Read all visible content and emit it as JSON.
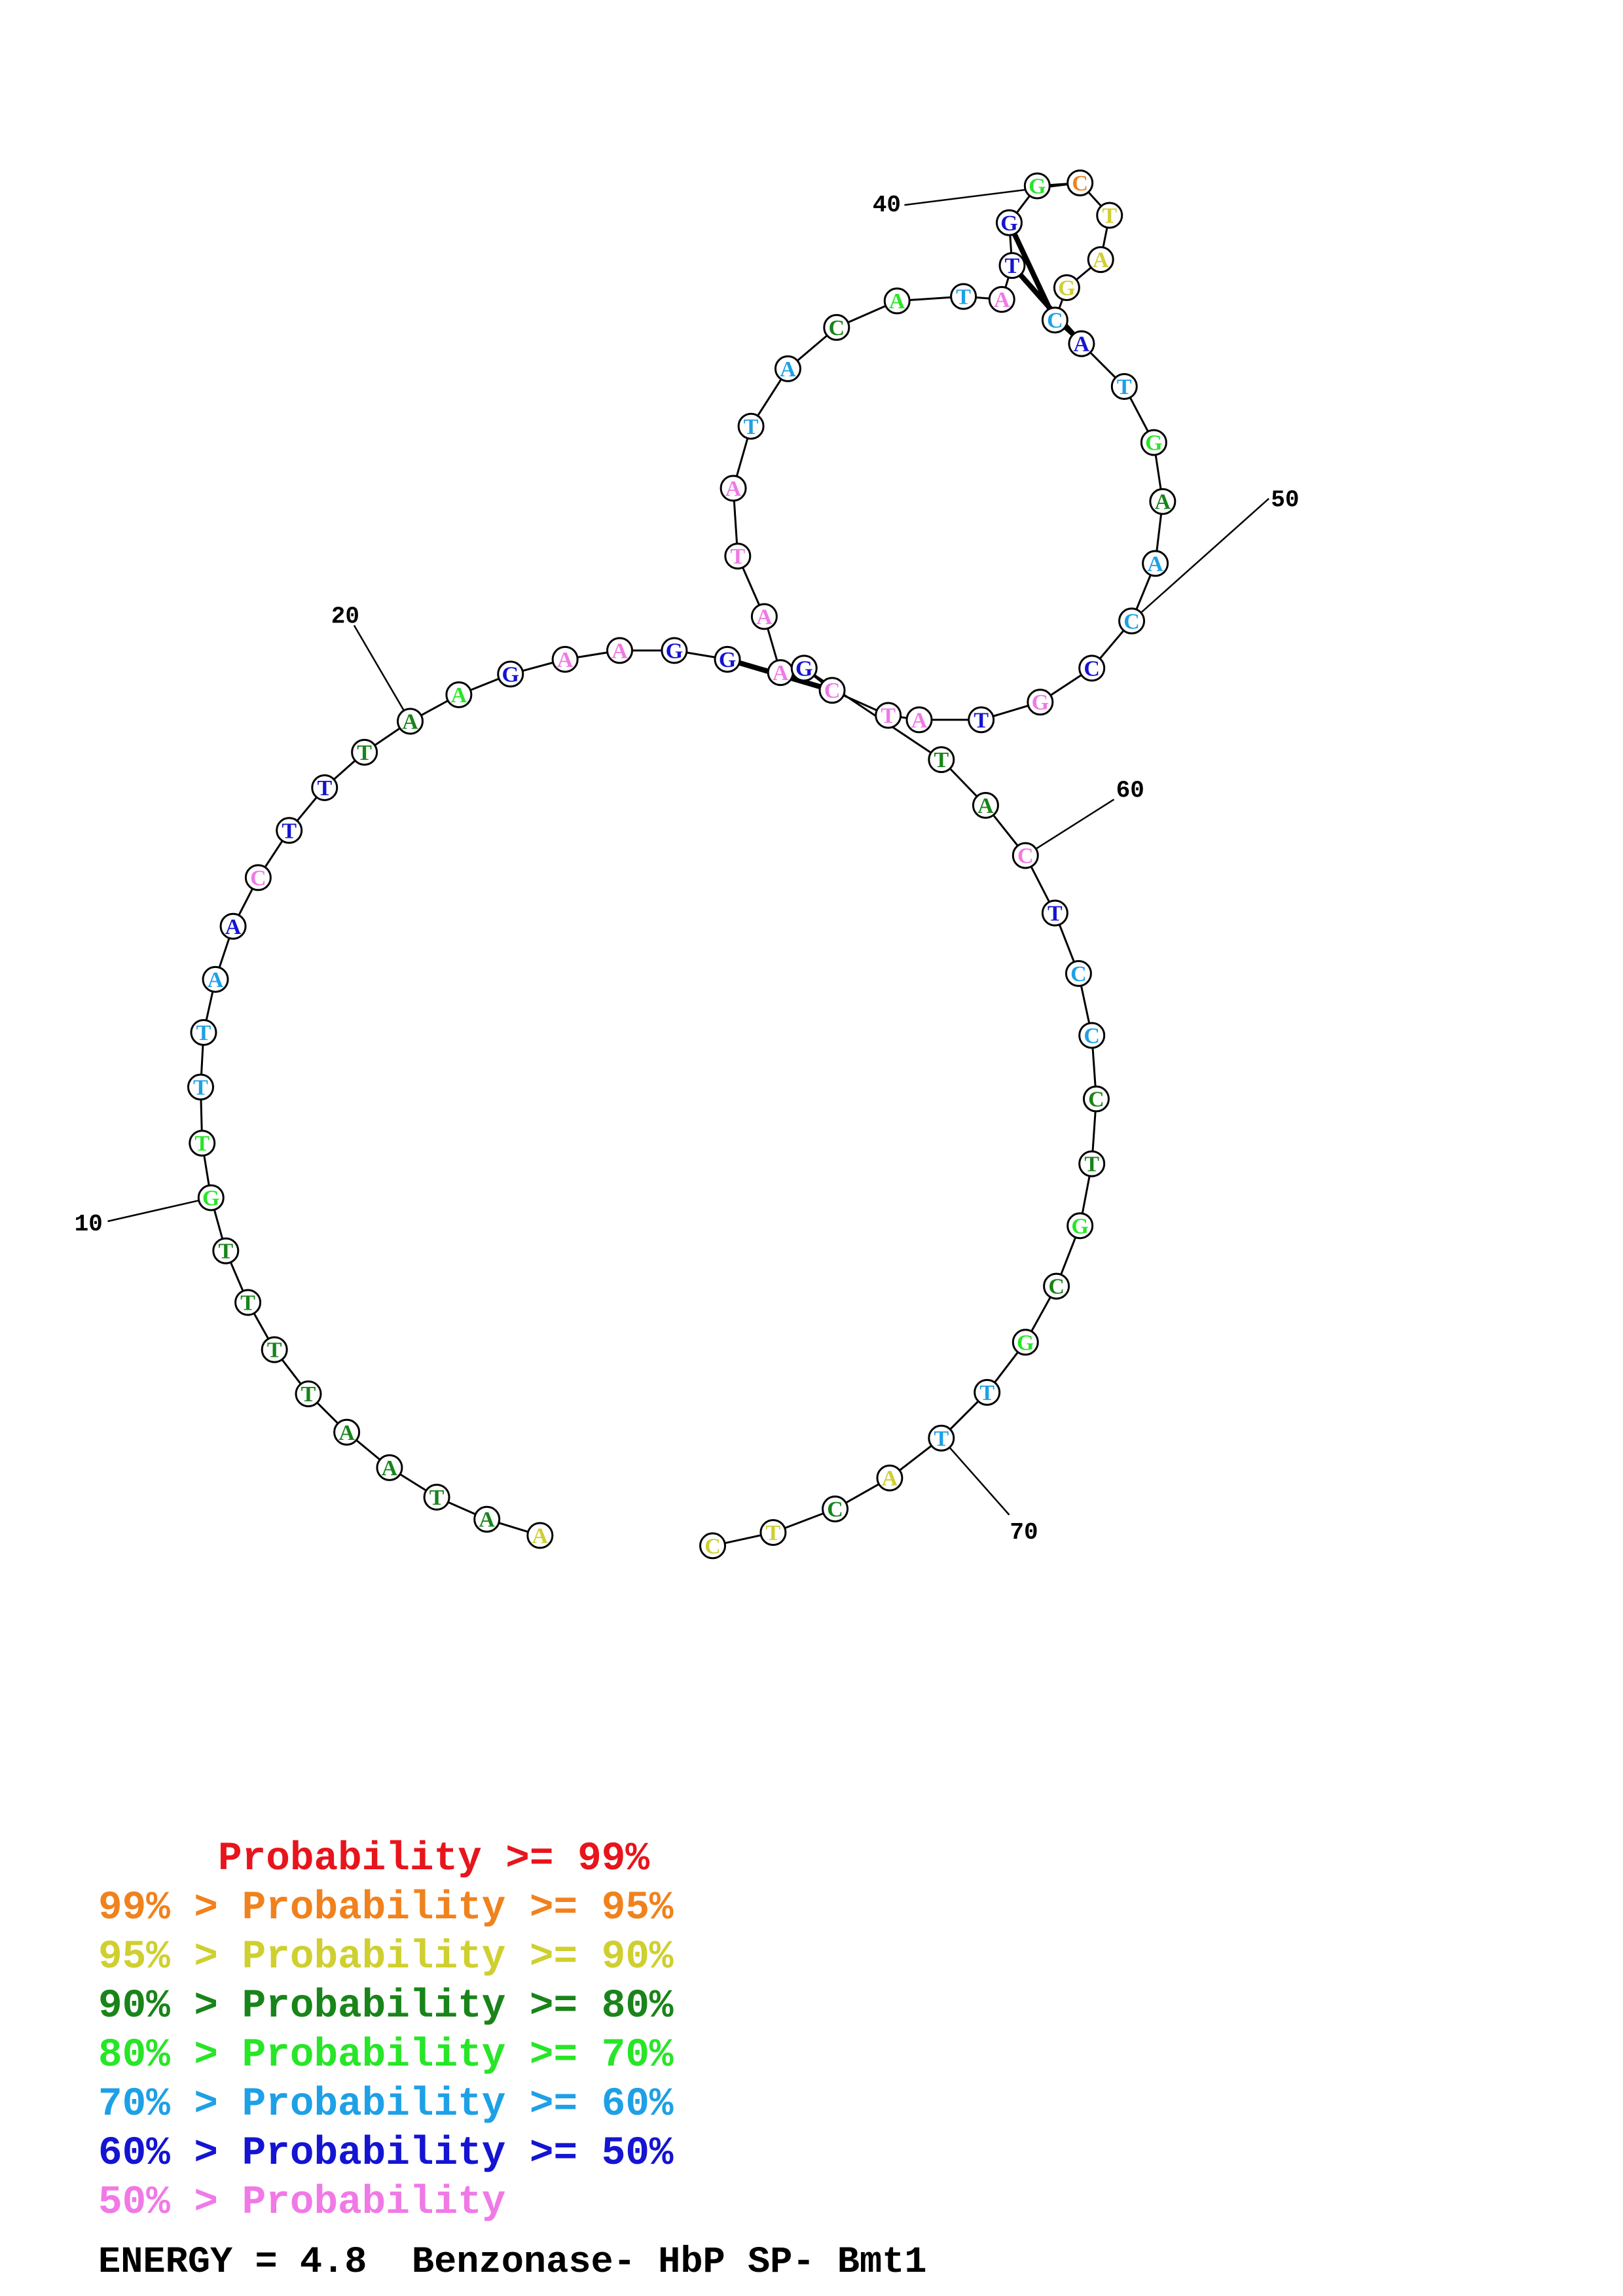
{
  "structure": {
    "sequence": [
      "A",
      "A",
      "T",
      "A",
      "A",
      "T",
      "T",
      "T",
      "T",
      "G",
      "T",
      "T",
      "T",
      "A",
      "A",
      "C",
      "T",
      "T",
      "T",
      "A",
      "A",
      "G",
      "A",
      "A",
      "G",
      "G",
      "A",
      "A",
      "T",
      "A",
      "T",
      "A",
      "C",
      "A",
      "T",
      "A",
      "T",
      "G",
      "G",
      "C",
      "T",
      "A",
      "G",
      "C",
      "A",
      "T",
      "G",
      "A",
      "A",
      "C",
      "C",
      "G",
      "T",
      "A",
      "T",
      "C",
      "G",
      "T",
      "A",
      "C",
      "T",
      "C",
      "C",
      "C",
      "T",
      "G",
      "C",
      "G",
      "T",
      "T",
      "A",
      "C",
      "T",
      "C"
    ],
    "prob_class": [
      2,
      3,
      3,
      3,
      3,
      3,
      3,
      3,
      3,
      4,
      4,
      5,
      5,
      5,
      6,
      7,
      6,
      6,
      3,
      3,
      4,
      6,
      7,
      7,
      6,
      6,
      7,
      7,
      7,
      7,
      5,
      5,
      3,
      4,
      5,
      7,
      6,
      6,
      4,
      1,
      2,
      2,
      2,
      5,
      6,
      5,
      4,
      3,
      5,
      5,
      6,
      7,
      6,
      7,
      7,
      7,
      6,
      3,
      3,
      7,
      6,
      5,
      5,
      3,
      3,
      4,
      3,
      4,
      5,
      5,
      2,
      3,
      2,
      2
    ],
    "pairs": [
      [
        26,
        56
      ],
      [
        38,
        44
      ],
      [
        37,
        45
      ]
    ],
    "position_labels": [
      {
        "index": 10,
        "text": "10"
      },
      {
        "index": 20,
        "text": "20"
      },
      {
        "index": 40,
        "text": "40"
      },
      {
        "index": 50,
        "text": "50"
      },
      {
        "index": 60,
        "text": "60"
      },
      {
        "index": 70,
        "text": "70"
      }
    ]
  },
  "legend": {
    "colors": [
      "#e8141c",
      "#f0821e",
      "#cfcf30",
      "#19841a",
      "#27e627",
      "#1ea0e6",
      "#1414d2",
      "#f079e6"
    ],
    "rows": [
      {
        "text": "     Probability >= 99%"
      },
      {
        "text": "99% > Probability >= 95%"
      },
      {
        "text": "95% > Probability >= 90%"
      },
      {
        "text": "90% > Probability >= 80%"
      },
      {
        "text": "80% > Probability >= 70%"
      },
      {
        "text": "70% > Probability >= 60%"
      },
      {
        "text": "60% > Probability >= 50%"
      },
      {
        "text": "50% > Probability"
      }
    ]
  },
  "energy_text": "ENERGY = 4.8  Benzonase- HbP SP- Bmt1"
}
